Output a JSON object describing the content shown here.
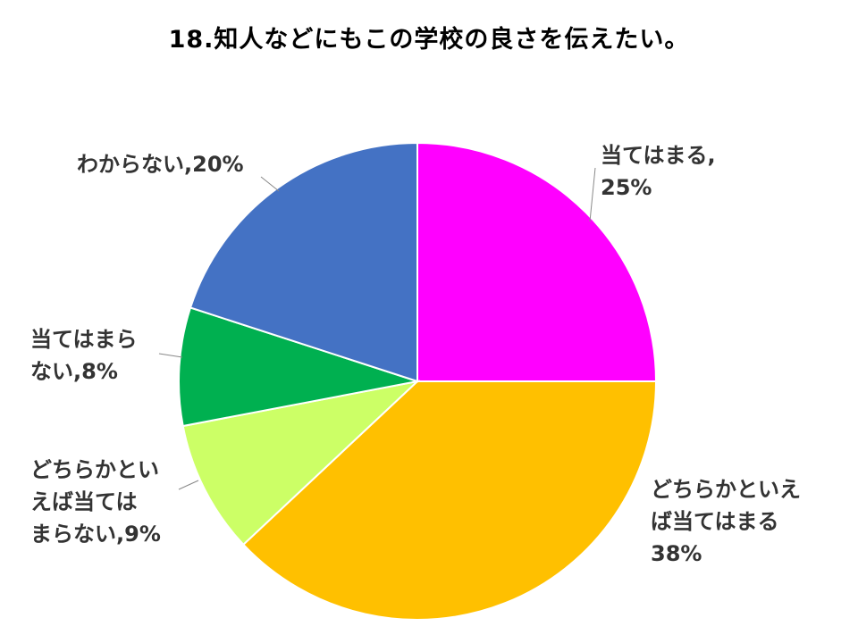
{
  "title": "18.知人などにもこの学校の良さを伝えたい。",
  "chart_data": {
    "type": "pie",
    "title": "18.知人などにもこの学校の良さを伝えたい。",
    "start": "12 o'clock, clockwise",
    "slices": [
      {
        "label": "当てはまる",
        "value": 25,
        "color": "#FF00FF",
        "label_lines": [
          "当てはまる,",
          "25%"
        ]
      },
      {
        "label": "どちらかといえば当てはまる",
        "value": 38,
        "color": "#FFC000",
        "label_lines": [
          "どちらかといえ",
          "ば当てはまる",
          "38%"
        ]
      },
      {
        "label": "どちらかといえば当てはまらない",
        "value": 9,
        "color": "#CCFF66",
        "label_lines": [
          "どちらかとい",
          "えば当ては",
          "まらない,9%"
        ]
      },
      {
        "label": "当てはまらない",
        "value": 8,
        "color": "#00B050",
        "label_lines": [
          "当てはまら",
          "ない,8%"
        ]
      },
      {
        "label": "わからない",
        "value": 20,
        "color": "#4472C4",
        "label_lines": [
          "わからない,20%"
        ]
      }
    ]
  }
}
